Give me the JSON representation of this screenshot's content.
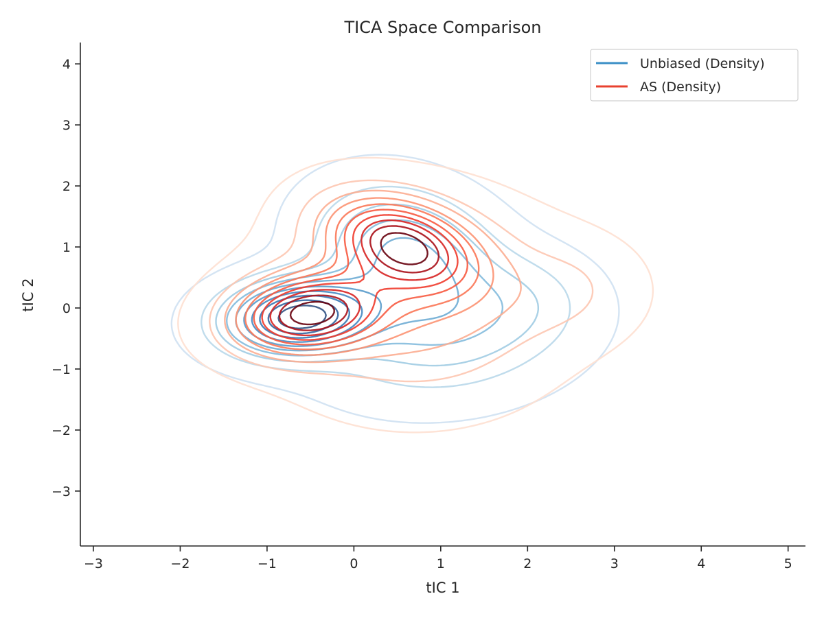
{
  "chart_data": {
    "type": "contour",
    "title": "TICA Space Comparison",
    "xlabel": "tIC 1",
    "ylabel": "tIC 2",
    "xlim": [
      -3.15,
      5.2
    ],
    "ylim": [
      -3.9,
      4.35
    ],
    "xticks": [
      -3,
      -2,
      -1,
      0,
      1,
      2,
      3,
      4,
      5
    ],
    "yticks": [
      -3,
      -2,
      -1,
      0,
      1,
      2,
      3,
      4
    ],
    "xtick_labels": [
      "−3",
      "−2",
      "−1",
      "0",
      "1",
      "2",
      "3",
      "4",
      "5"
    ],
    "ytick_labels": [
      "−3",
      "−2",
      "−1",
      "0",
      "1",
      "2",
      "3",
      "4"
    ],
    "grid": false,
    "legend_position": "top-right",
    "series": [
      {
        "name": "Unbiased (Density)",
        "color": "#3a8fc6",
        "colormap": "Blues",
        "levels": 10,
        "components": [
          {
            "weight": 1.0,
            "mean": [
              -0.65,
              -0.15
            ],
            "sd": [
              0.55,
              0.4
            ],
            "rho": 0.1
          },
          {
            "weight": 0.45,
            "mean": [
              0.6,
              0.9
            ],
            "sd": [
              0.65,
              0.7
            ],
            "rho": -0.2
          },
          {
            "weight": 0.3,
            "mean": [
              1.0,
              -0.4
            ],
            "sd": [
              0.9,
              0.7
            ],
            "rho": 0.1
          },
          {
            "weight": 0.1,
            "mean": [
              2.0,
              0.15
            ],
            "sd": [
              0.5,
              0.5
            ],
            "rho": 0.0
          }
        ]
      },
      {
        "name": "AS (Density)",
        "color": "#e8412f",
        "colormap": "Reds",
        "levels": 10,
        "components": [
          {
            "weight": 1.0,
            "mean": [
              -0.55,
              -0.1
            ],
            "sd": [
              0.55,
              0.42
            ],
            "rho": 0.15
          },
          {
            "weight": 0.95,
            "mean": [
              0.55,
              1.05
            ],
            "sd": [
              0.55,
              0.5
            ],
            "rho": -0.35
          },
          {
            "weight": 0.35,
            "mean": [
              0.7,
              0.1
            ],
            "sd": [
              1.0,
              1.0
            ],
            "rho": 0.0
          },
          {
            "weight": 0.12,
            "mean": [
              2.5,
              0.3
            ],
            "sd": [
              0.55,
              0.55
            ],
            "rho": 0.0
          }
        ]
      }
    ]
  }
}
